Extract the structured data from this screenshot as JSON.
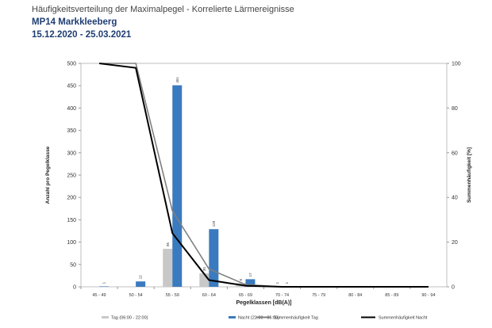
{
  "header": {
    "title": "Häufigkeitsverteilung der Maximalpegel - Korrelierte Lärmereignisse",
    "station": "MP14 Markkleeberg",
    "period": "15.12.2020 - 25.03.2021"
  },
  "chart_data": {
    "type": "bar",
    "xlabel": "Pegelklassen [dB(A)]",
    "ylabel": "Anzahl pro Pegelklasse",
    "y2label": "Summenhäufigkeit [%]",
    "ylim": [
      0,
      500
    ],
    "yticks": [
      0,
      50,
      100,
      150,
      200,
      250,
      300,
      350,
      400,
      450,
      500
    ],
    "y2lim": [
      0,
      100
    ],
    "y2ticks": [
      0,
      20,
      40,
      60,
      80,
      100
    ],
    "grid": false,
    "legend_position": "bottom",
    "categories": [
      "45 - 49",
      "50 - 54",
      "55 - 59",
      "60 - 64",
      "65 - 69",
      "70 - 74",
      "75 - 79",
      "80 - 84",
      "85 - 89",
      "90 - 94"
    ],
    "series": [
      {
        "name": "Tag (06:00 - 22:00)",
        "kind": "bar",
        "axis": "left",
        "color": "#c8c8c8",
        "values": [
          0,
          0,
          85,
          30,
          8,
          1,
          0,
          0,
          0,
          0
        ],
        "labels": [
          "",
          "",
          "85",
          "30",
          "8",
          "1",
          "",
          "",
          "",
          ""
        ]
      },
      {
        "name": "Nacht (22:00 - 06:00)",
        "kind": "bar",
        "axis": "left",
        "color": "#3a7abf",
        "values": [
          1,
          12,
          451,
          129,
          17,
          1,
          0,
          0,
          0,
          0
        ],
        "labels": [
          "1",
          "12",
          "451",
          "129",
          "17",
          "1",
          "",
          "",
          "",
          ""
        ]
      },
      {
        "name": "Summenhäufigkeit Tag",
        "kind": "line",
        "axis": "right",
        "color": "#808080",
        "values": [
          100,
          100,
          34,
          8,
          1,
          0,
          0,
          0,
          0,
          0
        ]
      },
      {
        "name": "Summenhäufigkeit Nacht",
        "kind": "line",
        "axis": "right",
        "color": "#000000",
        "values": [
          100,
          98,
          24,
          3,
          0.5,
          0,
          0,
          0,
          0,
          0
        ]
      }
    ]
  }
}
